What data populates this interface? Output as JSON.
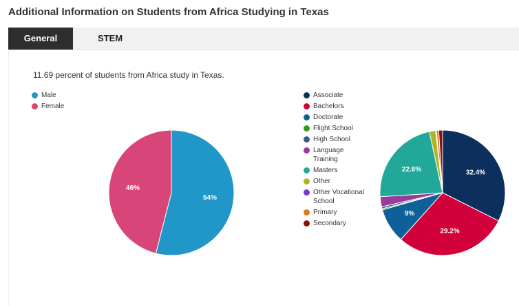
{
  "page": {
    "title": "Additional Information on Students from Africa Studying in Texas",
    "intro": "11.69 percent of students from Africa study in Texas."
  },
  "tabs": [
    {
      "label": "General"
    },
    {
      "label": "STEM"
    }
  ],
  "chart_data": [
    {
      "type": "pie",
      "title": "",
      "legend_placement": "top-left",
      "slices": [
        {
          "name": "Male",
          "value": 54,
          "label": "54%",
          "color": "#2196c9"
        },
        {
          "name": "Female",
          "value": 46,
          "label": "46%",
          "color": "#d84679"
        }
      ]
    },
    {
      "type": "pie",
      "title": "",
      "legend_placement": "left",
      "slices": [
        {
          "name": "Associate",
          "value": 32.4,
          "label": "32.4%",
          "color": "#0d2f5e"
        },
        {
          "name": "Bachelors",
          "value": 29.2,
          "label": "29.2%",
          "color": "#d1003a"
        },
        {
          "name": "Doctorate",
          "value": 9,
          "label": "9%",
          "color": "#0d6198"
        },
        {
          "name": "Flight School",
          "value": 0.3,
          "label": "",
          "color": "#3a9a1c"
        },
        {
          "name": "High School",
          "value": 0.5,
          "label": "",
          "color": "#3a5a8a"
        },
        {
          "name": "Language Training",
          "value": 2.6,
          "label": "",
          "color": "#9a3a9a"
        },
        {
          "name": "Masters",
          "value": 22.6,
          "label": "22.6%",
          "color": "#22a898"
        },
        {
          "name": "Other",
          "value": 1.6,
          "label": "",
          "color": "#b4b21e"
        },
        {
          "name": "Other Vocational School",
          "value": 0.2,
          "label": "",
          "color": "#7a3ad1"
        },
        {
          "name": "Primary",
          "value": 0.6,
          "label": "",
          "color": "#e27a12"
        },
        {
          "name": "Secondary",
          "value": 1.0,
          "label": "",
          "color": "#8a1010"
        }
      ]
    }
  ]
}
